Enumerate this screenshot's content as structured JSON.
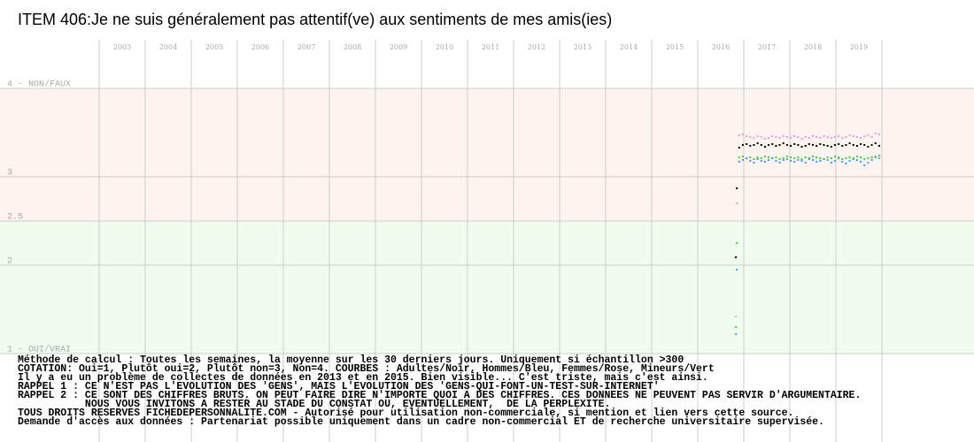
{
  "chart_data": {
    "type": "scatter",
    "title": "ITEM 406:Je ne suis généralement pas attentif(ve) aux sentiments de mes amis(ies)",
    "xlim": [
      2003,
      2020
    ],
    "xticks": [
      2003,
      2004,
      2005,
      2006,
      2007,
      2008,
      2009,
      2010,
      2011,
      2012,
      2013,
      2014,
      2015,
      2016,
      2017,
      2018,
      2019
    ],
    "ylim": [
      0,
      4.55
    ],
    "yticks": [
      {
        "value": 4,
        "label": "4 - NON/FAUX"
      },
      3,
      2.5,
      2,
      {
        "value": 1,
        "label": "1 - OUI/VRAI"
      }
    ],
    "grid": true,
    "zones": [
      {
        "from": 2.5,
        "to": 4,
        "color": "#fdf3ef"
      },
      {
        "from": 1,
        "to": 2.5,
        "color": "#effdef"
      }
    ],
    "x": [
      2016.83,
      2016.85,
      2016.9,
      2016.98,
      2017.06,
      2017.14,
      2017.22,
      2017.3,
      2017.38,
      2017.46,
      2017.54,
      2017.62,
      2017.7,
      2017.78,
      2017.86,
      2017.94,
      2018.02,
      2018.1,
      2018.18,
      2018.26,
      2018.34,
      2018.42,
      2018.5,
      2018.58,
      2018.66,
      2018.74,
      2018.82,
      2018.9,
      2018.98,
      2019.06,
      2019.14,
      2019.22,
      2019.3,
      2019.38,
      2019.46,
      2019.54,
      2019.62,
      2019.7,
      2019.78,
      2019.86,
      2019.94
    ],
    "series": [
      {
        "color": "#ee99dd",
        "values": [
          1.42,
          2.7,
          3.47,
          3.48,
          3.46,
          3.45,
          3.44,
          3.46,
          3.45,
          3.43,
          3.44,
          3.46,
          3.45,
          3.44,
          3.46,
          3.45,
          3.44,
          3.46,
          3.45,
          3.43,
          3.45,
          3.44,
          3.46,
          3.45,
          3.44,
          3.46,
          3.45,
          3.44,
          3.45,
          3.46,
          3.44,
          3.45,
          3.47,
          3.46,
          3.45,
          3.44,
          3.46,
          3.47,
          3.45,
          3.49,
          3.48
        ]
      },
      {
        "color": "#44cc44",
        "values": [
          1.3,
          2.25,
          3.22,
          3.23,
          3.21,
          3.22,
          3.2,
          3.22,
          3.21,
          3.23,
          3.22,
          3.21,
          3.22,
          3.2,
          3.21,
          3.23,
          3.22,
          3.21,
          3.22,
          3.2,
          3.22,
          3.21,
          3.23,
          3.22,
          3.21,
          3.2,
          3.22,
          3.21,
          3.23,
          3.22,
          3.2,
          3.21,
          3.22,
          3.21,
          3.23,
          3.22,
          3.2,
          3.21,
          3.22,
          3.23,
          3.21
        ]
      },
      {
        "color": "#4499ee",
        "values": [
          1.22,
          1.95,
          3.17,
          3.19,
          3.21,
          3.18,
          3.16,
          3.2,
          3.18,
          3.17,
          3.19,
          3.21,
          3.18,
          3.16,
          3.19,
          3.2,
          3.18,
          3.17,
          3.19,
          3.18,
          3.16,
          3.2,
          3.19,
          3.17,
          3.18,
          3.2,
          3.19,
          3.16,
          3.18,
          3.21,
          3.17,
          3.15,
          3.18,
          3.2,
          3.19,
          3.17,
          3.13,
          3.16,
          3.19,
          3.22,
          3.24
        ]
      },
      {
        "color": "#000000",
        "values": [
          2.09,
          2.87,
          3.33,
          3.36,
          3.37,
          3.35,
          3.36,
          3.38,
          3.36,
          3.34,
          3.36,
          3.37,
          3.35,
          3.36,
          3.38,
          3.36,
          3.35,
          3.37,
          3.36,
          3.34,
          3.35,
          3.37,
          3.36,
          3.35,
          3.37,
          3.36,
          3.35,
          3.34,
          3.36,
          3.37,
          3.35,
          3.36,
          3.38,
          3.36,
          3.35,
          3.37,
          3.36,
          3.34,
          3.36,
          3.38,
          3.35
        ]
      }
    ],
    "notes": [
      "Méthode de calcul : Toutes les semaines, la moyenne sur les 30 derniers jours. Uniquement si échantillon >300",
      "COTATION: Oui=1, Plutôt oui=2, Plutôt non=3, Non=4. COURBES : Adultes/Noir, Hommes/Bleu, Femmes/Rose, Mineurs/Vert",
      "Il y a eu un problème de collectes de données en 2013 et en 2015. Bien visible... C'est triste, mais c'est ainsi.",
      "RAPPEL 1 : CE N'EST PAS L'EVOLUTION DES 'GENS', MAIS L'EVOLUTION DES 'GENS-QUI-FONT-UN-TEST-SUR-INTERNET'",
      "RAPPEL 2 : CE SONT DES CHIFFRES BRUTS. ON PEUT FAIRE DIRE N'IMPORTE QUOI A DES CHIFFRES. CES DONNEES NE PEUVENT PAS SERVIR D'ARGUMENTAIRE.",
      "           NOUS VOUS INVITONS A RESTER AU STADE DU CONSTAT OU, EVENTUELLEMENT,  DE LA PERPLEXITE.",
      "TOUS DROITS RESERVES FICHEDEPERSONNALITE.COM - Autorisé pour utilisation non-commerciale, si mention et lien vers cette source.",
      "Demande d'accès aux données : Partenariat possible uniquement dans un cadre non-commercial ET de recherche universitaire supervisée."
    ]
  }
}
